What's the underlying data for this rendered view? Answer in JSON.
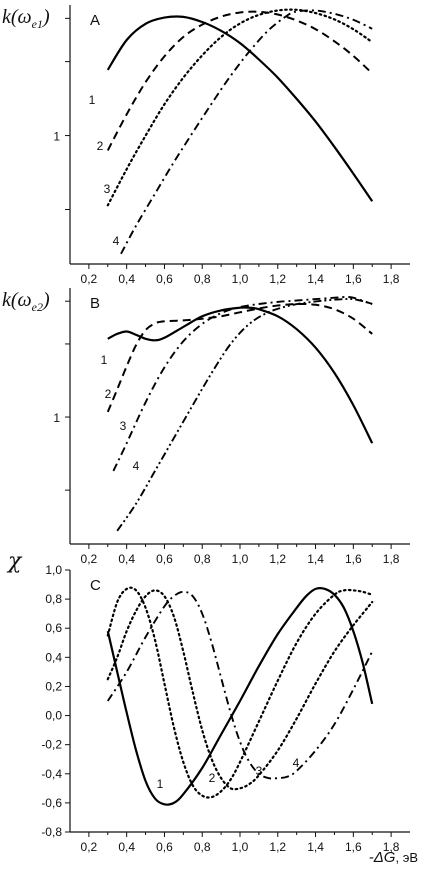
{
  "chart_data": [
    {
      "type": "line",
      "panel": "A",
      "ylabel_main": "k(ω",
      "ylabel_sub": "e1",
      "ylabel_close": ")",
      "xlim": [
        0.1,
        1.9
      ],
      "x_ticks": [
        "0,2",
        "0,4",
        "0,6",
        "0,8",
        "1,0",
        "1,2",
        "1,4",
        "1,6",
        "1,8"
      ],
      "y_scale": "log",
      "ylim": [
        0.3,
        3.4
      ],
      "y_tick_labels": [
        {
          "value": 1,
          "label": "1"
        }
      ],
      "series": [
        {
          "label": "1",
          "style": "solid",
          "x": [
            0.3,
            0.4,
            0.5,
            0.6,
            0.7,
            0.8,
            0.9,
            1.0,
            1.1,
            1.2,
            1.3,
            1.4,
            1.5,
            1.6,
            1.7
          ],
          "y": [
            1.85,
            2.45,
            2.85,
            3.02,
            3.04,
            2.9,
            2.67,
            2.38,
            2.04,
            1.72,
            1.41,
            1.14,
            0.9,
            0.7,
            0.54
          ]
        },
        {
          "label": "2",
          "style": "dashed",
          "x": [
            0.3,
            0.4,
            0.5,
            0.6,
            0.7,
            0.8,
            0.9,
            1.0,
            1.1,
            1.2,
            1.3,
            1.4,
            1.5,
            1.6,
            1.7
          ],
          "y": [
            0.87,
            1.22,
            1.65,
            2.1,
            2.52,
            2.83,
            3.05,
            3.17,
            3.19,
            3.11,
            2.94,
            2.71,
            2.42,
            2.11,
            1.79
          ]
        },
        {
          "label": "3",
          "style": "dotted",
          "x": [
            0.3,
            0.4,
            0.5,
            0.6,
            0.7,
            0.8,
            0.9,
            1.0,
            1.1,
            1.2,
            1.3,
            1.4,
            1.5,
            1.6,
            1.7
          ],
          "y": [
            0.52,
            0.73,
            1.0,
            1.34,
            1.72,
            2.12,
            2.52,
            2.86,
            3.1,
            3.23,
            3.25,
            3.15,
            2.97,
            2.71,
            2.4
          ]
        },
        {
          "label": "4",
          "style": "dashdot",
          "x": [
            0.37,
            0.45,
            0.55,
            0.65,
            0.75,
            0.85,
            0.95,
            1.05,
            1.15,
            1.25,
            1.3,
            1.4,
            1.5,
            1.6,
            1.7
          ],
          "y": [
            0.33,
            0.43,
            0.58,
            0.78,
            1.03,
            1.35,
            1.75,
            2.2,
            2.68,
            3.08,
            3.2,
            3.23,
            3.13,
            2.96,
            2.72
          ]
        }
      ]
    },
    {
      "type": "line",
      "panel": "B",
      "ylabel_main": "k(ω",
      "ylabel_sub": "e2",
      "ylabel_close": ")",
      "xlim": [
        0.1,
        1.9
      ],
      "x_ticks": [
        "0,2",
        "0,4",
        "0,6",
        "0,8",
        "1,0",
        "1,2",
        "1,4",
        "1,6",
        "1,8"
      ],
      "y_scale": "log",
      "ylim": [
        0.3,
        3.4
      ],
      "y_tick_labels": [
        {
          "value": 1,
          "label": "1"
        }
      ],
      "series": [
        {
          "label": "1",
          "style": "solid",
          "x": [
            0.3,
            0.35,
            0.4,
            0.45,
            0.5,
            0.55,
            0.6,
            0.7,
            0.8,
            0.9,
            1.0,
            1.05,
            1.1,
            1.2,
            1.3,
            1.4,
            1.5,
            1.6,
            1.7
          ],
          "y": [
            2.1,
            2.2,
            2.25,
            2.18,
            2.1,
            2.07,
            2.12,
            2.35,
            2.6,
            2.75,
            2.82,
            2.82,
            2.78,
            2.6,
            2.3,
            1.93,
            1.52,
            1.12,
            0.78
          ]
        },
        {
          "label": "2",
          "style": "dashed",
          "x": [
            0.3,
            0.35,
            0.4,
            0.45,
            0.5,
            0.55,
            0.6,
            0.7,
            0.8,
            0.9,
            1.0,
            1.1,
            1.2,
            1.3,
            1.4,
            1.5,
            1.6,
            1.7
          ],
          "y": [
            1.05,
            1.3,
            1.62,
            1.98,
            2.28,
            2.43,
            2.48,
            2.5,
            2.54,
            2.6,
            2.7,
            2.8,
            2.88,
            2.92,
            2.9,
            2.78,
            2.54,
            2.2
          ]
        },
        {
          "label": "3",
          "style": "dashdot",
          "x": [
            0.33,
            0.4,
            0.5,
            0.6,
            0.7,
            0.8,
            0.9,
            1.0,
            1.1,
            1.2,
            1.3,
            1.4,
            1.5,
            1.55,
            1.6,
            1.7
          ],
          "y": [
            0.6,
            0.78,
            1.15,
            1.6,
            2.05,
            2.42,
            2.68,
            2.84,
            2.92,
            2.98,
            3.02,
            3.06,
            3.1,
            3.12,
            3.1,
            2.92
          ]
        },
        {
          "label": "4",
          "style": "dashdotdot",
          "x": [
            0.35,
            0.45,
            0.55,
            0.65,
            0.75,
            0.85,
            0.95,
            1.05,
            1.15,
            1.25,
            1.35,
            1.45,
            1.55,
            1.6,
            1.65,
            1.7
          ],
          "y": [
            0.34,
            0.44,
            0.6,
            0.82,
            1.12,
            1.52,
            2.0,
            2.42,
            2.7,
            2.86,
            2.96,
            3.02,
            3.06,
            3.06,
            3.0,
            2.92
          ]
        }
      ]
    },
    {
      "type": "line",
      "panel": "C",
      "ylabel_main": "χ",
      "xlabel_main": "-ΔG",
      "xlabel_unit": ", эВ",
      "xlim": [
        0.1,
        1.9
      ],
      "x_ticks": [
        "0,2",
        "0,4",
        "0,6",
        "0,8",
        "1,0",
        "1,2",
        "1,4",
        "1,6",
        "1,8"
      ],
      "y_scale": "linear",
      "ylim": [
        -0.8,
        1.0
      ],
      "y_ticks": [
        "-0,8",
        "-0,6",
        "-0,4",
        "-0,2",
        "0,0",
        "0,2",
        "0,4",
        "0,6",
        "0,8",
        "1,0"
      ],
      "series": [
        {
          "label": "1",
          "style": "solid",
          "x": [
            0.3,
            0.35,
            0.4,
            0.45,
            0.5,
            0.55,
            0.6,
            0.65,
            0.7,
            0.8,
            0.9,
            1.0,
            1.1,
            1.2,
            1.3,
            1.35,
            1.4,
            1.45,
            1.5,
            1.55,
            1.6,
            1.65,
            1.7
          ],
          "y": [
            0.58,
            0.3,
            0.02,
            -0.24,
            -0.45,
            -0.57,
            -0.61,
            -0.6,
            -0.54,
            -0.36,
            -0.13,
            0.1,
            0.34,
            0.56,
            0.74,
            0.82,
            0.87,
            0.87,
            0.83,
            0.74,
            0.58,
            0.36,
            0.08
          ]
        },
        {
          "label": "2",
          "style": "dotted",
          "x": [
            0.3,
            0.35,
            0.4,
            0.45,
            0.5,
            0.55,
            0.6,
            0.65,
            0.7,
            0.75,
            0.8,
            0.85,
            0.9,
            0.95,
            1.0,
            1.1,
            1.2,
            1.3,
            1.4,
            1.5,
            1.55,
            1.6,
            1.65,
            1.7
          ],
          "y": [
            0.55,
            0.78,
            0.87,
            0.86,
            0.74,
            0.52,
            0.22,
            -0.08,
            -0.32,
            -0.48,
            -0.55,
            -0.56,
            -0.52,
            -0.44,
            -0.32,
            -0.04,
            0.24,
            0.5,
            0.7,
            0.83,
            0.86,
            0.86,
            0.85,
            0.83
          ]
        },
        {
          "label": "3",
          "style": "dotted",
          "x": [
            0.3,
            0.35,
            0.4,
            0.45,
            0.5,
            0.55,
            0.6,
            0.65,
            0.7,
            0.75,
            0.8,
            0.85,
            0.9,
            0.95,
            1.0,
            1.05,
            1.1,
            1.2,
            1.3,
            1.4,
            1.5,
            1.6,
            1.7
          ],
          "y": [
            0.25,
            0.4,
            0.58,
            0.72,
            0.82,
            0.86,
            0.82,
            0.68,
            0.44,
            0.16,
            -0.1,
            -0.3,
            -0.43,
            -0.5,
            -0.5,
            -0.47,
            -0.41,
            -0.24,
            -0.02,
            0.22,
            0.44,
            0.62,
            0.78
          ]
        },
        {
          "label": "4",
          "style": "dashdot",
          "x": [
            0.3,
            0.4,
            0.5,
            0.6,
            0.65,
            0.7,
            0.75,
            0.8,
            0.85,
            0.9,
            0.95,
            1.0,
            1.05,
            1.1,
            1.15,
            1.2,
            1.25,
            1.3,
            1.4,
            1.5,
            1.6,
            1.7
          ],
          "y": [
            0.1,
            0.3,
            0.54,
            0.75,
            0.82,
            0.85,
            0.82,
            0.7,
            0.5,
            0.26,
            0.02,
            -0.18,
            -0.32,
            -0.4,
            -0.43,
            -0.43,
            -0.42,
            -0.38,
            -0.24,
            -0.06,
            0.18,
            0.44
          ]
        }
      ]
    }
  ]
}
